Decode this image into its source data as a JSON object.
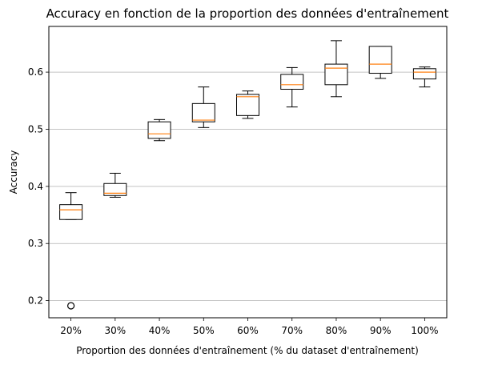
{
  "chart_data": {
    "type": "box",
    "title": "Accuracy en fonction de la proportion des données d'entraînement",
    "xlabel": "Proportion des données d'entraînement (% du dataset d'entraînement)",
    "ylabel": "Accuracy",
    "categories": [
      "20%",
      "30%",
      "40%",
      "50%",
      "60%",
      "70%",
      "80%",
      "90%",
      "100%"
    ],
    "y_ticks": [
      "0.2",
      "0.3",
      "0.4",
      "0.5",
      "0.6"
    ],
    "ylim": [
      0.17,
      0.68
    ],
    "grid": "y",
    "colors": {
      "box": "#000000",
      "median": "#ff7f0e",
      "grid": "#b0b0b0"
    },
    "boxes": [
      {
        "whislo": 0.342,
        "q1": 0.342,
        "med": 0.359,
        "q3": 0.368,
        "whishi": 0.389,
        "fliers": [
          0.191
        ]
      },
      {
        "whislo": 0.381,
        "q1": 0.384,
        "med": 0.388,
        "q3": 0.405,
        "whishi": 0.423,
        "fliers": []
      },
      {
        "whislo": 0.48,
        "q1": 0.484,
        "med": 0.492,
        "q3": 0.513,
        "whishi": 0.517,
        "fliers": []
      },
      {
        "whislo": 0.503,
        "q1": 0.513,
        "med": 0.516,
        "q3": 0.545,
        "whishi": 0.574,
        "fliers": []
      },
      {
        "whislo": 0.519,
        "q1": 0.524,
        "med": 0.557,
        "q3": 0.561,
        "whishi": 0.567,
        "fliers": []
      },
      {
        "whislo": 0.539,
        "q1": 0.57,
        "med": 0.578,
        "q3": 0.596,
        "whishi": 0.608,
        "fliers": []
      },
      {
        "whislo": 0.557,
        "q1": 0.578,
        "med": 0.607,
        "q3": 0.614,
        "whishi": 0.655,
        "fliers": []
      },
      {
        "whislo": 0.589,
        "q1": 0.598,
        "med": 0.614,
        "q3": 0.645,
        "whishi": 0.645,
        "fliers": []
      },
      {
        "whislo": 0.574,
        "q1": 0.588,
        "med": 0.6,
        "q3": 0.606,
        "whishi": 0.609,
        "fliers": []
      }
    ]
  }
}
